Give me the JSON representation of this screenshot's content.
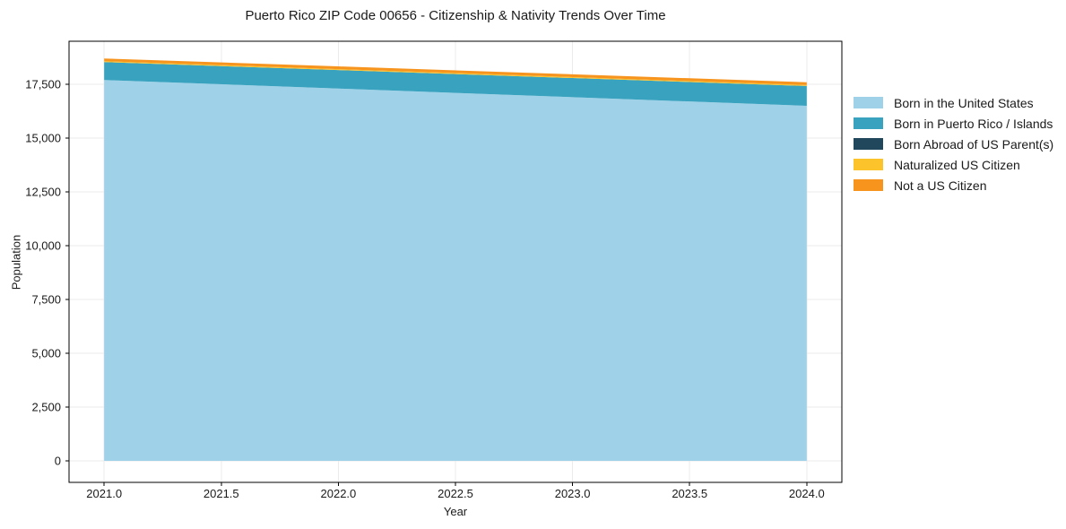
{
  "figure": {
    "background": "#ffffff"
  },
  "chart_data": {
    "type": "area",
    "stacked": true,
    "title": "Puerto Rico ZIP Code 00656 - Citizenship & Nativity Trends Over Time",
    "xlabel": "Year",
    "ylabel": "Population",
    "x": [
      2021,
      2022,
      2023,
      2024
    ],
    "series": [
      {
        "name": "Born in the United States",
        "color": "#9FD2E8",
        "values": [
          17700,
          17300,
          16900,
          16500
        ]
      },
      {
        "name": "Born in Puerto Rico / Islands",
        "color": "#38A2BF",
        "values": [
          830,
          860,
          890,
          920
        ]
      },
      {
        "name": "Born Abroad of US Parent(s)",
        "color": "#21475C",
        "values": [
          0,
          0,
          0,
          0
        ]
      },
      {
        "name": "Naturalized US Citizen",
        "color": "#FCC32B",
        "values": [
          45,
          45,
          45,
          45
        ]
      },
      {
        "name": "Not a US Citizen",
        "color": "#F7941E",
        "values": [
          125,
          127,
          128,
          130
        ]
      }
    ],
    "xlim": [
      2020.85,
      2024.15
    ],
    "ylim": [
      -1000,
      19500
    ],
    "xticks": {
      "values": [
        2021.0,
        2021.5,
        2022.0,
        2022.5,
        2023.0,
        2023.5,
        2024.0
      ],
      "labels": [
        "2021.0",
        "2021.5",
        "2022.0",
        "2022.5",
        "2023.0",
        "2023.5",
        "2024.0"
      ]
    },
    "yticks": {
      "values": [
        0,
        2500,
        5000,
        7500,
        10000,
        12500,
        15000,
        17500
      ],
      "labels": [
        "0",
        "2,500",
        "5,000",
        "7,500",
        "10,000",
        "12,500",
        "15,000",
        "17,500"
      ]
    },
    "grid": true,
    "grid_color": "#EBEBEB",
    "spine_color": "#000000",
    "text_color": "#1a1a1a",
    "legend_position": "right"
  }
}
